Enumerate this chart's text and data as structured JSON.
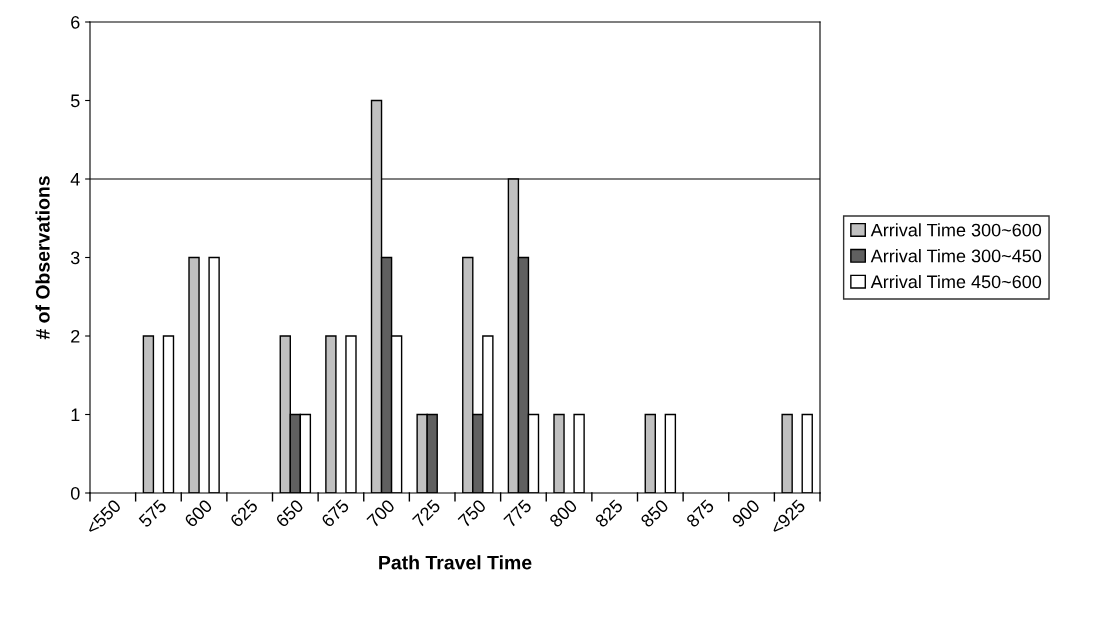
{
  "chart_data": {
    "type": "bar",
    "xlabel": "Path Travel Time",
    "ylabel": "# of Observations",
    "categories": [
      "<550",
      "575",
      "600",
      "625",
      "650",
      "675",
      "700",
      "725",
      "750",
      "775",
      "800",
      "825",
      "850",
      "875",
      "900",
      "<925"
    ],
    "series": [
      {
        "name": "Arrival Time 300~600",
        "color": "#c0c0c0",
        "values": [
          0,
          2,
          3,
          0,
          2,
          2,
          5,
          1,
          3,
          4,
          1,
          0,
          1,
          0,
          0,
          1
        ]
      },
      {
        "name": "Arrival Time 300~450",
        "color": "#606060",
        "values": [
          0,
          0,
          0,
          0,
          1,
          0,
          3,
          1,
          1,
          3,
          0,
          0,
          0,
          0,
          0,
          0
        ]
      },
      {
        "name": "Arrival Time 450~600",
        "color": "#ffffff",
        "values": [
          0,
          2,
          3,
          0,
          1,
          2,
          2,
          0,
          2,
          1,
          1,
          0,
          1,
          0,
          0,
          1
        ]
      }
    ],
    "ylim": [
      0,
      6
    ],
    "yticks": [
      0,
      1,
      2,
      3,
      4,
      5,
      6
    ],
    "ref_lines": [
      {
        "axis": "y",
        "value": 4,
        "label": null,
        "color": "#000000"
      }
    ],
    "grid": false,
    "legend": "right"
  }
}
